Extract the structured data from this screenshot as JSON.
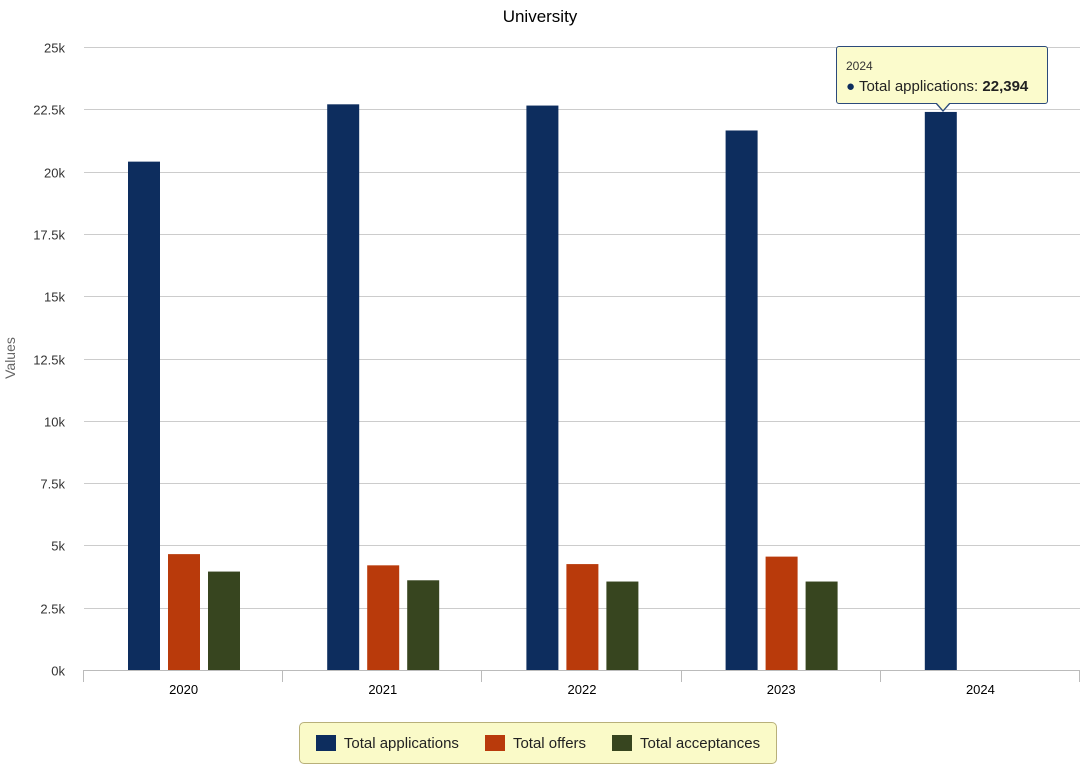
{
  "chart_data": {
    "type": "bar",
    "title": "University",
    "xlabel": "",
    "ylabel": "Values",
    "ylim": [
      0,
      25000
    ],
    "yticks": [
      0,
      2500,
      5000,
      7500,
      10000,
      12500,
      15000,
      17500,
      20000,
      22500,
      25000
    ],
    "ytick_labels": [
      "0k",
      "2.5k",
      "5k",
      "7.5k",
      "10k",
      "12.5k",
      "15k",
      "17.5k",
      "20k",
      "22.5k",
      "25k"
    ],
    "categories": [
      "2020",
      "2021",
      "2022",
      "2023",
      "2024"
    ],
    "series": [
      {
        "name": "Total applications",
        "color": "#0d2d5e",
        "values": [
          20400,
          22700,
          22650,
          21650,
          22394
        ]
      },
      {
        "name": "Total offers",
        "color": "#b93a0b",
        "values": [
          4650,
          4200,
          4250,
          4550,
          null
        ]
      },
      {
        "name": "Total acceptances",
        "color": "#37451f",
        "values": [
          3950,
          3600,
          3550,
          3550,
          null
        ]
      }
    ],
    "grid": true,
    "legend_position": "bottom-center"
  },
  "tooltip": {
    "header": "2024",
    "bullet": "●",
    "series_label": "Total applications:",
    "value": "22,394"
  }
}
